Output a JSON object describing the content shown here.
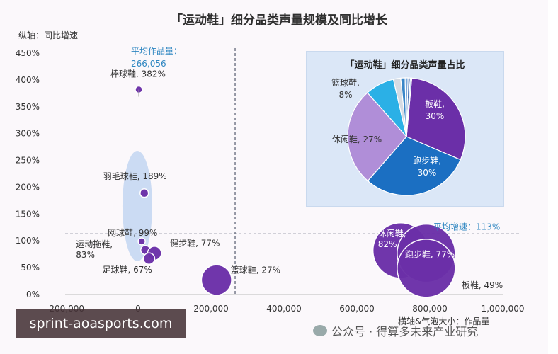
{
  "title": "「运动鞋」细分品类声量规模及同比增长",
  "ylabel": "纵轴：同比增速",
  "xlabel": "横轴&气泡大小：作品量",
  "avg_x_label_line1": "平均作品量：",
  "avg_x_label_line2": "266,056",
  "avg_y_label": "平均增速：113%",
  "watermark": "sprint-aoasports.com",
  "wechat_text": "公众号 · 得算多未来产业研究",
  "colors": {
    "bubble": "#6b2fa8",
    "bubble_highlight": "#c5d7f2",
    "avg_line": "#555a6e",
    "avg_x_text": "#2e86c1",
    "avg_y_text": "#2e86c1"
  },
  "chart_data": [
    {
      "type": "scatter",
      "title": "「运动鞋」细分品类声量规模及同比增长",
      "xlabel": "横轴&气泡大小：作品量",
      "ylabel": "纵轴：同比增速",
      "xlim": [
        -200000,
        1000000
      ],
      "ylim": [
        0,
        450
      ],
      "x_ticks": [
        "-200,000",
        "0",
        "200,000",
        "400,000",
        "600,000",
        "800,000",
        "1,000,000"
      ],
      "y_ticks": [
        "0%",
        "50%",
        "100%",
        "150%",
        "200%",
        "250%",
        "300%",
        "350%",
        "400%",
        "450%"
      ],
      "avg_x": 266056,
      "avg_y": 113,
      "points": [
        {
          "name": "棒球鞋",
          "label": "棒球鞋, 382%",
          "x": 2000,
          "y": 382,
          "size": 2000
        },
        {
          "name": "羽毛球鞋",
          "label": "羽毛球鞋, 189%",
          "x": 17000,
          "y": 189,
          "size": 17000
        },
        {
          "name": "网球鞋",
          "label": "网球鞋, 99%",
          "x": 10000,
          "y": 99,
          "size": 10000
        },
        {
          "name": "运动拖鞋",
          "label": "运动拖鞋,\n83%",
          "x": 20000,
          "y": 83,
          "size": 20000
        },
        {
          "name": "健步鞋",
          "label": "健步鞋, 77%",
          "x": 45000,
          "y": 77,
          "size": 45000
        },
        {
          "name": "足球鞋",
          "label": "足球鞋, 67%",
          "x": 30000,
          "y": 67,
          "size": 30000
        },
        {
          "name": "篮球鞋",
          "label": "篮球鞋, 27%",
          "x": 215000,
          "y": 27,
          "size": 215000
        },
        {
          "name": "休闲鞋",
          "label": "休闲鞋,\n82%",
          "x": 720000,
          "y": 82,
          "size": 720000
        },
        {
          "name": "跑步鞋",
          "label": "跑步鞋, 77%",
          "x": 790000,
          "y": 77,
          "size": 790000
        },
        {
          "name": "板鞋",
          "label": "板鞋, 49%",
          "x": 790000,
          "y": 49,
          "size": 790000
        }
      ]
    },
    {
      "type": "pie",
      "title": "「运动鞋」细分品类声量占比",
      "slices": [
        {
          "name": "板鞋",
          "value": 30,
          "label": "板鞋,\n30%",
          "color": "#6b2fa8"
        },
        {
          "name": "跑步鞋",
          "value": 30,
          "label": "跑步鞋,\n30%",
          "color": "#1b6fc2"
        },
        {
          "name": "休闲鞋",
          "value": 27,
          "label": "休闲鞋, 27%",
          "color": "#b08ed8"
        },
        {
          "name": "篮球鞋",
          "value": 8,
          "label": "篮球鞋,\n8%",
          "color": "#2bb0e6"
        },
        {
          "name": "其他1",
          "value": 2,
          "label": "",
          "color": "#d5dbe3"
        },
        {
          "name": "其他2",
          "value": 1.2,
          "label": "",
          "color": "#3a86c8"
        },
        {
          "name": "其他3",
          "value": 0.8,
          "label": "",
          "color": "#7aa7d9"
        },
        {
          "name": "其他4",
          "value": 0.6,
          "label": "",
          "color": "#2a5da8"
        },
        {
          "name": "其他5",
          "value": 0.4,
          "label": "",
          "color": "#a9c6ea"
        }
      ]
    }
  ]
}
